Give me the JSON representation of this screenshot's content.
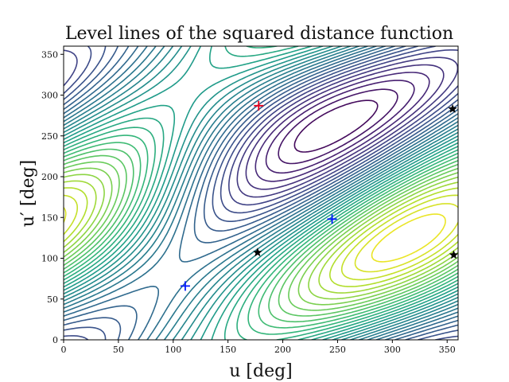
{
  "chart_data": {
    "type": "contour",
    "title": "Level lines of the squared distance function",
    "xlabel": "u [deg]",
    "ylabel": "u′ [deg]",
    "xlim": [
      0,
      360
    ],
    "ylim": [
      0,
      360
    ],
    "xticks": [
      0,
      50,
      100,
      150,
      200,
      250,
      300,
      350
    ],
    "yticks": [
      0,
      50,
      100,
      150,
      200,
      250,
      300,
      350
    ],
    "grid": false,
    "colormap": "viridis",
    "markers": [
      {
        "kind": "plus",
        "color": "#e8001c",
        "x": 178,
        "y": 287
      },
      {
        "kind": "plus",
        "color": "#0018ff",
        "x": 111,
        "y": 66
      },
      {
        "kind": "plus",
        "color": "#0018ff",
        "x": 245,
        "y": 148
      },
      {
        "kind": "star",
        "color": "#000000",
        "x": 177,
        "y": 107
      },
      {
        "kind": "star",
        "color": "#000000",
        "x": 355,
        "y": 283
      },
      {
        "kind": "star",
        "color": "#000000",
        "x": 356,
        "y": 104
      }
    ]
  }
}
